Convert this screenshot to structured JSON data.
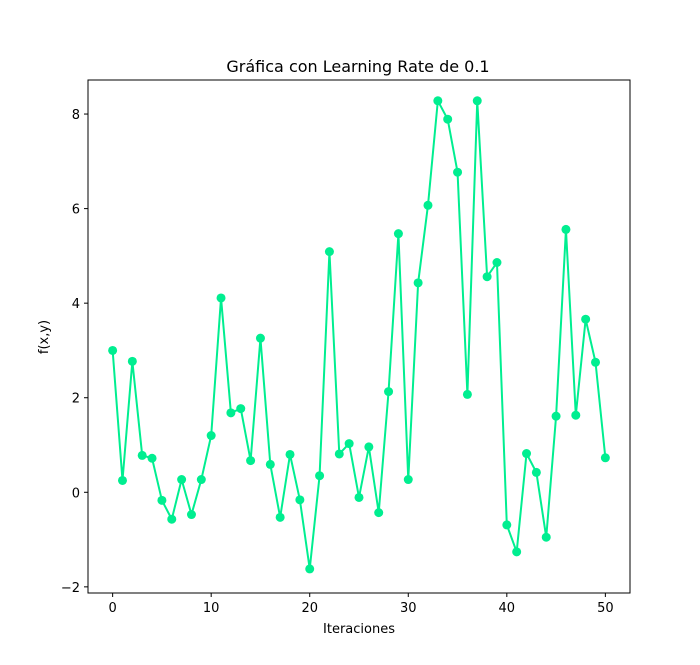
{
  "chart_data": {
    "type": "line",
    "title": "Gráfica con Learning Rate de 0.1",
    "xlabel": "Iteraciones",
    "ylabel": "f(x,y)",
    "xlim": [
      -2.5,
      52.5
    ],
    "ylim": [
      -2.13,
      8.72
    ],
    "xticks": [
      0,
      10,
      20,
      30,
      40,
      50
    ],
    "yticks": [
      -2,
      0,
      2,
      4,
      6,
      8
    ],
    "grid": false,
    "series": [
      {
        "color": "#00ee90",
        "marker": "circle",
        "x": [
          0,
          1,
          2,
          3,
          4,
          5,
          6,
          7,
          8,
          9,
          10,
          11,
          12,
          13,
          14,
          15,
          16,
          17,
          18,
          19,
          20,
          21,
          22,
          23,
          24,
          25,
          26,
          27,
          28,
          29,
          30,
          31,
          32,
          33,
          34,
          35,
          36,
          37,
          38,
          39,
          40,
          41,
          42,
          43,
          44,
          45,
          46,
          47,
          48,
          49,
          50
        ],
        "values": [
          3.0,
          0.25,
          2.77,
          0.78,
          0.72,
          -0.17,
          -0.57,
          0.27,
          -0.47,
          0.27,
          1.2,
          4.11,
          1.68,
          1.77,
          0.67,
          3.26,
          0.59,
          -0.53,
          0.8,
          -0.16,
          -1.62,
          0.35,
          5.09,
          0.81,
          1.03,
          -0.11,
          0.96,
          -0.43,
          2.13,
          5.47,
          0.27,
          4.43,
          6.07,
          8.28,
          7.89,
          6.77,
          2.07,
          8.28,
          4.56,
          4.86,
          -0.69,
          -1.26,
          0.82,
          0.42,
          -0.95,
          1.61,
          5.56,
          1.63,
          3.66,
          2.75,
          0.73
        ]
      }
    ]
  }
}
